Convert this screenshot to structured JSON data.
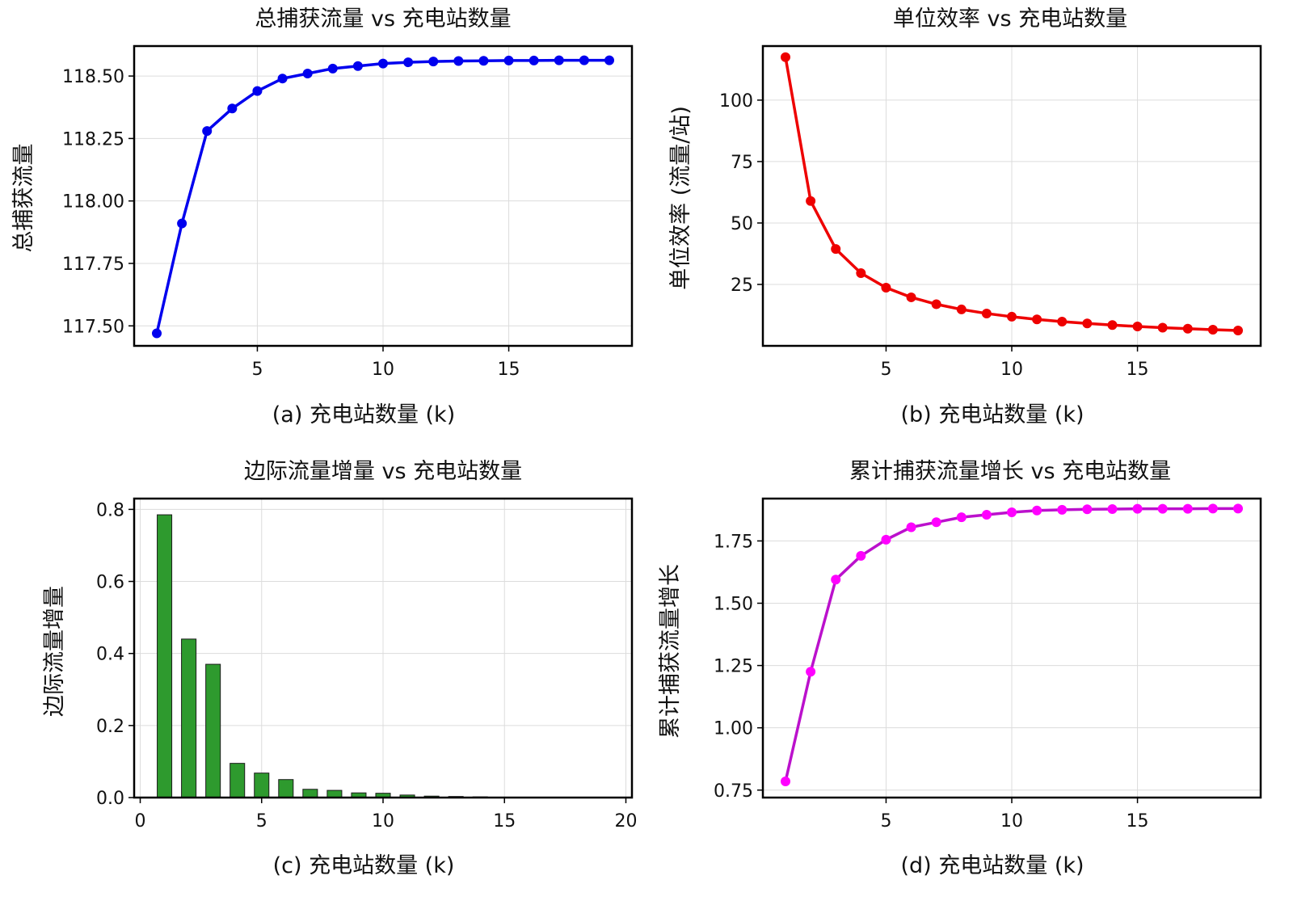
{
  "chart_data": [
    {
      "type": "line",
      "title": "总捕获流量 vs 充电站数量",
      "xlabel": "(a) 充电站数量 (k)",
      "ylabel": "总捕获流量",
      "color": "#0000ee",
      "xlim": [
        0.1,
        19.9
      ],
      "ylim": [
        117.42,
        118.62
      ],
      "xticks": [
        5,
        10,
        15
      ],
      "yticks": [
        117.5,
        117.75,
        118.0,
        118.25,
        118.5
      ],
      "ytick_labels": [
        "117.50",
        "117.75",
        "118.00",
        "118.25",
        "118.50"
      ],
      "grid": true,
      "x": [
        1,
        2,
        3,
        4,
        5,
        6,
        7,
        8,
        9,
        10,
        11,
        12,
        13,
        14,
        15,
        16,
        17,
        18,
        19
      ],
      "y": [
        117.47,
        117.91,
        118.28,
        118.37,
        118.44,
        118.49,
        118.51,
        118.53,
        118.54,
        118.55,
        118.555,
        118.558,
        118.56,
        118.561,
        118.562,
        118.562,
        118.563,
        118.563,
        118.563
      ]
    },
    {
      "type": "line",
      "title": "单位效率 vs 充电站数量",
      "xlabel": "(b) 充电站数量 (k)",
      "ylabel": "单位效率 (流量/站)",
      "color": "#ee0000",
      "xlim": [
        0.1,
        19.9
      ],
      "ylim": [
        0,
        122
      ],
      "xticks": [
        5,
        10,
        15
      ],
      "yticks": [
        25,
        50,
        75,
        100
      ],
      "ytick_labels": [
        "25",
        "50",
        "75",
        "100"
      ],
      "grid": true,
      "x": [
        1,
        2,
        3,
        4,
        5,
        6,
        7,
        8,
        9,
        10,
        11,
        12,
        13,
        14,
        15,
        16,
        17,
        18,
        19
      ],
      "y": [
        117.47,
        58.96,
        39.43,
        29.59,
        23.69,
        19.75,
        16.93,
        14.82,
        13.17,
        11.86,
        10.78,
        9.88,
        9.12,
        8.47,
        7.9,
        7.41,
        6.97,
        6.59,
        6.24
      ]
    },
    {
      "type": "bar",
      "title": "边际流量增量 vs 充电站数量",
      "xlabel": "(c) 充电站数量 (k)",
      "ylabel": "边际流量增量",
      "color": "#2e9a2e",
      "xlim": [
        -0.25,
        20.25
      ],
      "ylim": [
        0,
        0.83
      ],
      "xticks": [
        0,
        5,
        10,
        15,
        20
      ],
      "yticks": [
        0.0,
        0.2,
        0.4,
        0.6,
        0.8
      ],
      "ytick_labels": [
        "0.0",
        "0.2",
        "0.4",
        "0.6",
        "0.8"
      ],
      "grid": true,
      "x": [
        1,
        2,
        3,
        4,
        5,
        6,
        7,
        8,
        9,
        10,
        11,
        12,
        13,
        14,
        15,
        16,
        17,
        18,
        19
      ],
      "y": [
        0.785,
        0.44,
        0.37,
        0.095,
        0.068,
        0.05,
        0.023,
        0.02,
        0.013,
        0.012,
        0.007,
        0.004,
        0.003,
        0.002,
        0.001,
        0.001,
        0.0005,
        0.0003,
        0.0002
      ]
    },
    {
      "type": "line",
      "title": "累计捕获流量增长 vs 充电站数量",
      "xlabel": "(d) 充电站数量 (k)",
      "ylabel": "累计捕获流量增长",
      "color": "#bb11cc",
      "marker_color": "#ff00ff",
      "xlim": [
        0.1,
        19.9
      ],
      "ylim": [
        0.72,
        1.92
      ],
      "xticks": [
        5,
        10,
        15
      ],
      "yticks": [
        0.75,
        1.0,
        1.25,
        1.5,
        1.75
      ],
      "ytick_labels": [
        "0.75",
        "1.00",
        "1.25",
        "1.50",
        "1.75"
      ],
      "grid": true,
      "x": [
        1,
        2,
        3,
        4,
        5,
        6,
        7,
        8,
        9,
        10,
        11,
        12,
        13,
        14,
        15,
        16,
        17,
        18,
        19
      ],
      "y": [
        0.785,
        1.225,
        1.595,
        1.69,
        1.755,
        1.805,
        1.825,
        1.845,
        1.855,
        1.865,
        1.872,
        1.875,
        1.877,
        1.878,
        1.879,
        1.879,
        1.879,
        1.88,
        1.88
      ]
    }
  ]
}
